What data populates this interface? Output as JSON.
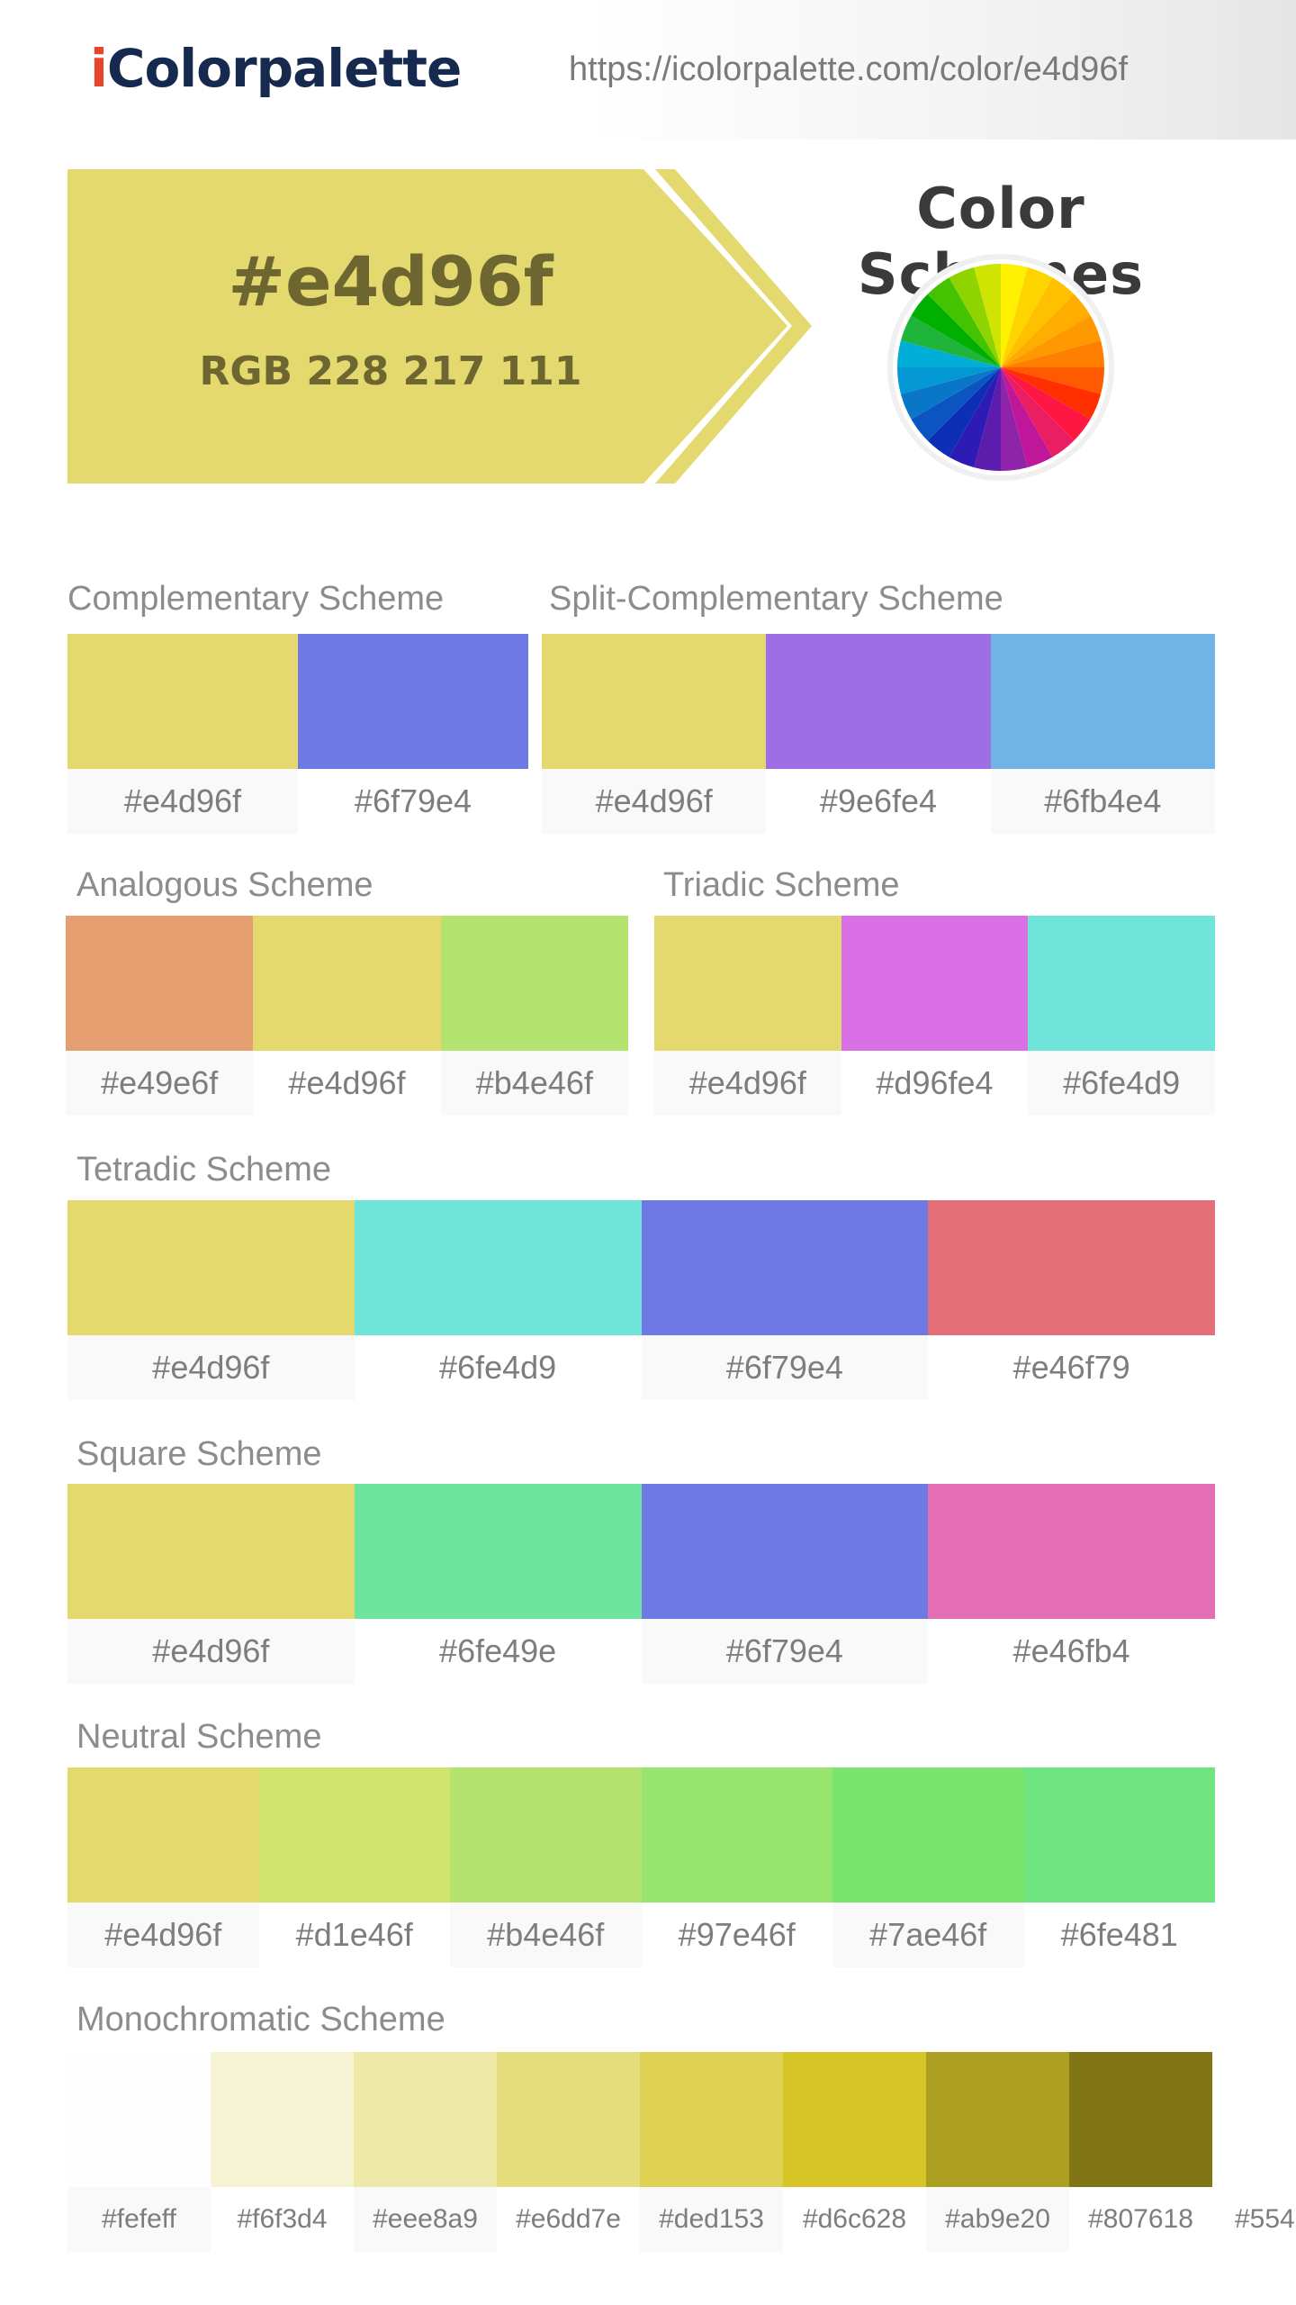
{
  "header": {
    "logo_prefix": "i",
    "logo_rest": "Colorpalette",
    "url": "https://icolorpalette.com/color/e4d96f"
  },
  "hero": {
    "hex": "#e4d96f",
    "rgb": "RGB 228 217 111",
    "color": "#e4d96f",
    "title": "Color Schemes"
  },
  "wheel": {
    "colors": [
      "#fff200",
      "#ffd500",
      "#ffc000",
      "#ffae00",
      "#ff9900",
      "#ff7f00",
      "#ff5a00",
      "#ff2f00",
      "#ff1744",
      "#e91e63",
      "#c0179a",
      "#8e24aa",
      "#5c1dad",
      "#2e1bb5",
      "#0d2fb5",
      "#0a55c2",
      "#0a76c8",
      "#0398d3",
      "#00aed8",
      "#1fb53a",
      "#00b000",
      "#44c300",
      "#8fd400",
      "#cfe400"
    ]
  },
  "sections": [
    {
      "title": "Complementary Scheme",
      "colors": [
        "#e4d96f",
        "#6f79e4"
      ]
    },
    {
      "title": "Split-Complementary Scheme",
      "colors": [
        "#e4d96f",
        "#9e6fe4",
        "#6fb4e4"
      ]
    },
    {
      "title": "Analogous Scheme",
      "colors": [
        "#e49e6f",
        "#e4d96f",
        "#b4e46f"
      ]
    },
    {
      "title": "Triadic Scheme",
      "colors": [
        "#e4d96f",
        "#d96fe4",
        "#6fe4d9"
      ]
    },
    {
      "title": "Tetradic Scheme",
      "colors": [
        "#e4d96f",
        "#6fe4d9",
        "#6f79e4",
        "#e46f79"
      ]
    },
    {
      "title": "Square Scheme",
      "colors": [
        "#e4d96f",
        "#6fe49e",
        "#6f79e4",
        "#e46fb4"
      ]
    },
    {
      "title": "Neutral Scheme",
      "colors": [
        "#e4d96f",
        "#d1e46f",
        "#b4e46f",
        "#97e46f",
        "#7ae46f",
        "#6fe481"
      ]
    },
    {
      "title": "Monochromatic Scheme",
      "colors": [
        "#fefeff",
        "#f6f3d4",
        "#eee8a9",
        "#e6dd7e",
        "#ded153",
        "#d6c628",
        "#ab9e20",
        "#807618"
      ],
      "cut_label": "#554"
    }
  ]
}
